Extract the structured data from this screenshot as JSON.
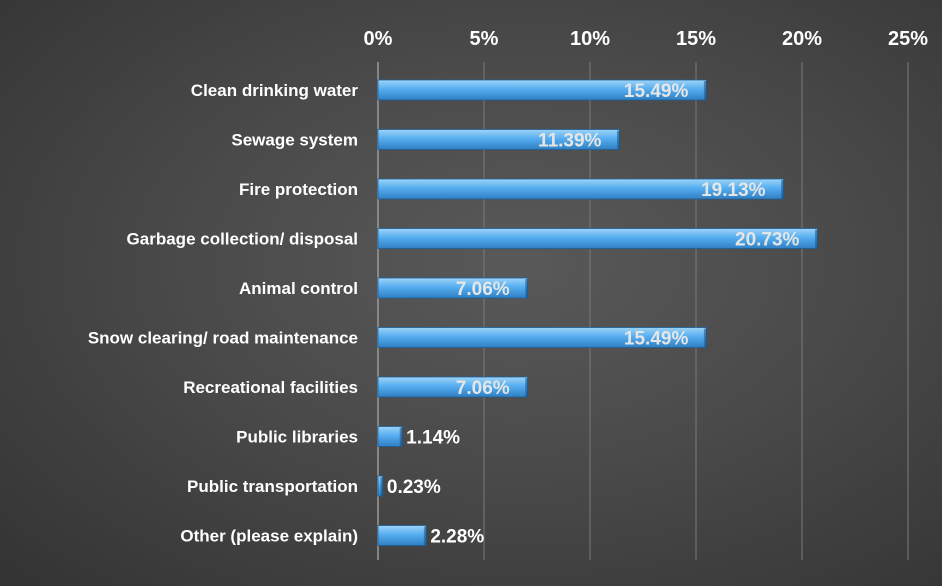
{
  "chart_data": {
    "type": "bar",
    "orientation": "horizontal",
    "title": "",
    "xlabel": "",
    "ylabel": "",
    "categories": [
      "Clean drinking water",
      "Sewage system",
      "Fire protection",
      "Garbage collection/ disposal",
      "Animal control",
      "Snow clearing/ road maintenance",
      "Recreational facilities",
      "Public libraries",
      "Public transportation",
      "Other (please explain)"
    ],
    "values": [
      15.49,
      11.39,
      19.13,
      20.73,
      7.06,
      15.49,
      7.06,
      1.14,
      0.23,
      2.28
    ],
    "value_labels": [
      "15.49%",
      "11.39%",
      "19.13%",
      "20.73%",
      "7.06%",
      "15.49%",
      "7.06%",
      "1.14%",
      "0.23%",
      "2.28%"
    ],
    "xlim": [
      0,
      25
    ],
    "x_ticks": [
      0,
      5,
      10,
      15,
      20,
      25
    ],
    "x_tick_labels": [
      "0%",
      "5%",
      "10%",
      "15%",
      "20%",
      "25%"
    ],
    "axis_position": "top",
    "grid": true,
    "legend": "none",
    "colors": {
      "bar_top": "#9fd4f7",
      "bar_mid": "#55aef0",
      "bar_bottom": "#2f7fc3",
      "bar_edge": "#1d5f99",
      "background": "#4a4a4a",
      "gridline": "#7a7a7a",
      "text": "#ffffff"
    }
  }
}
